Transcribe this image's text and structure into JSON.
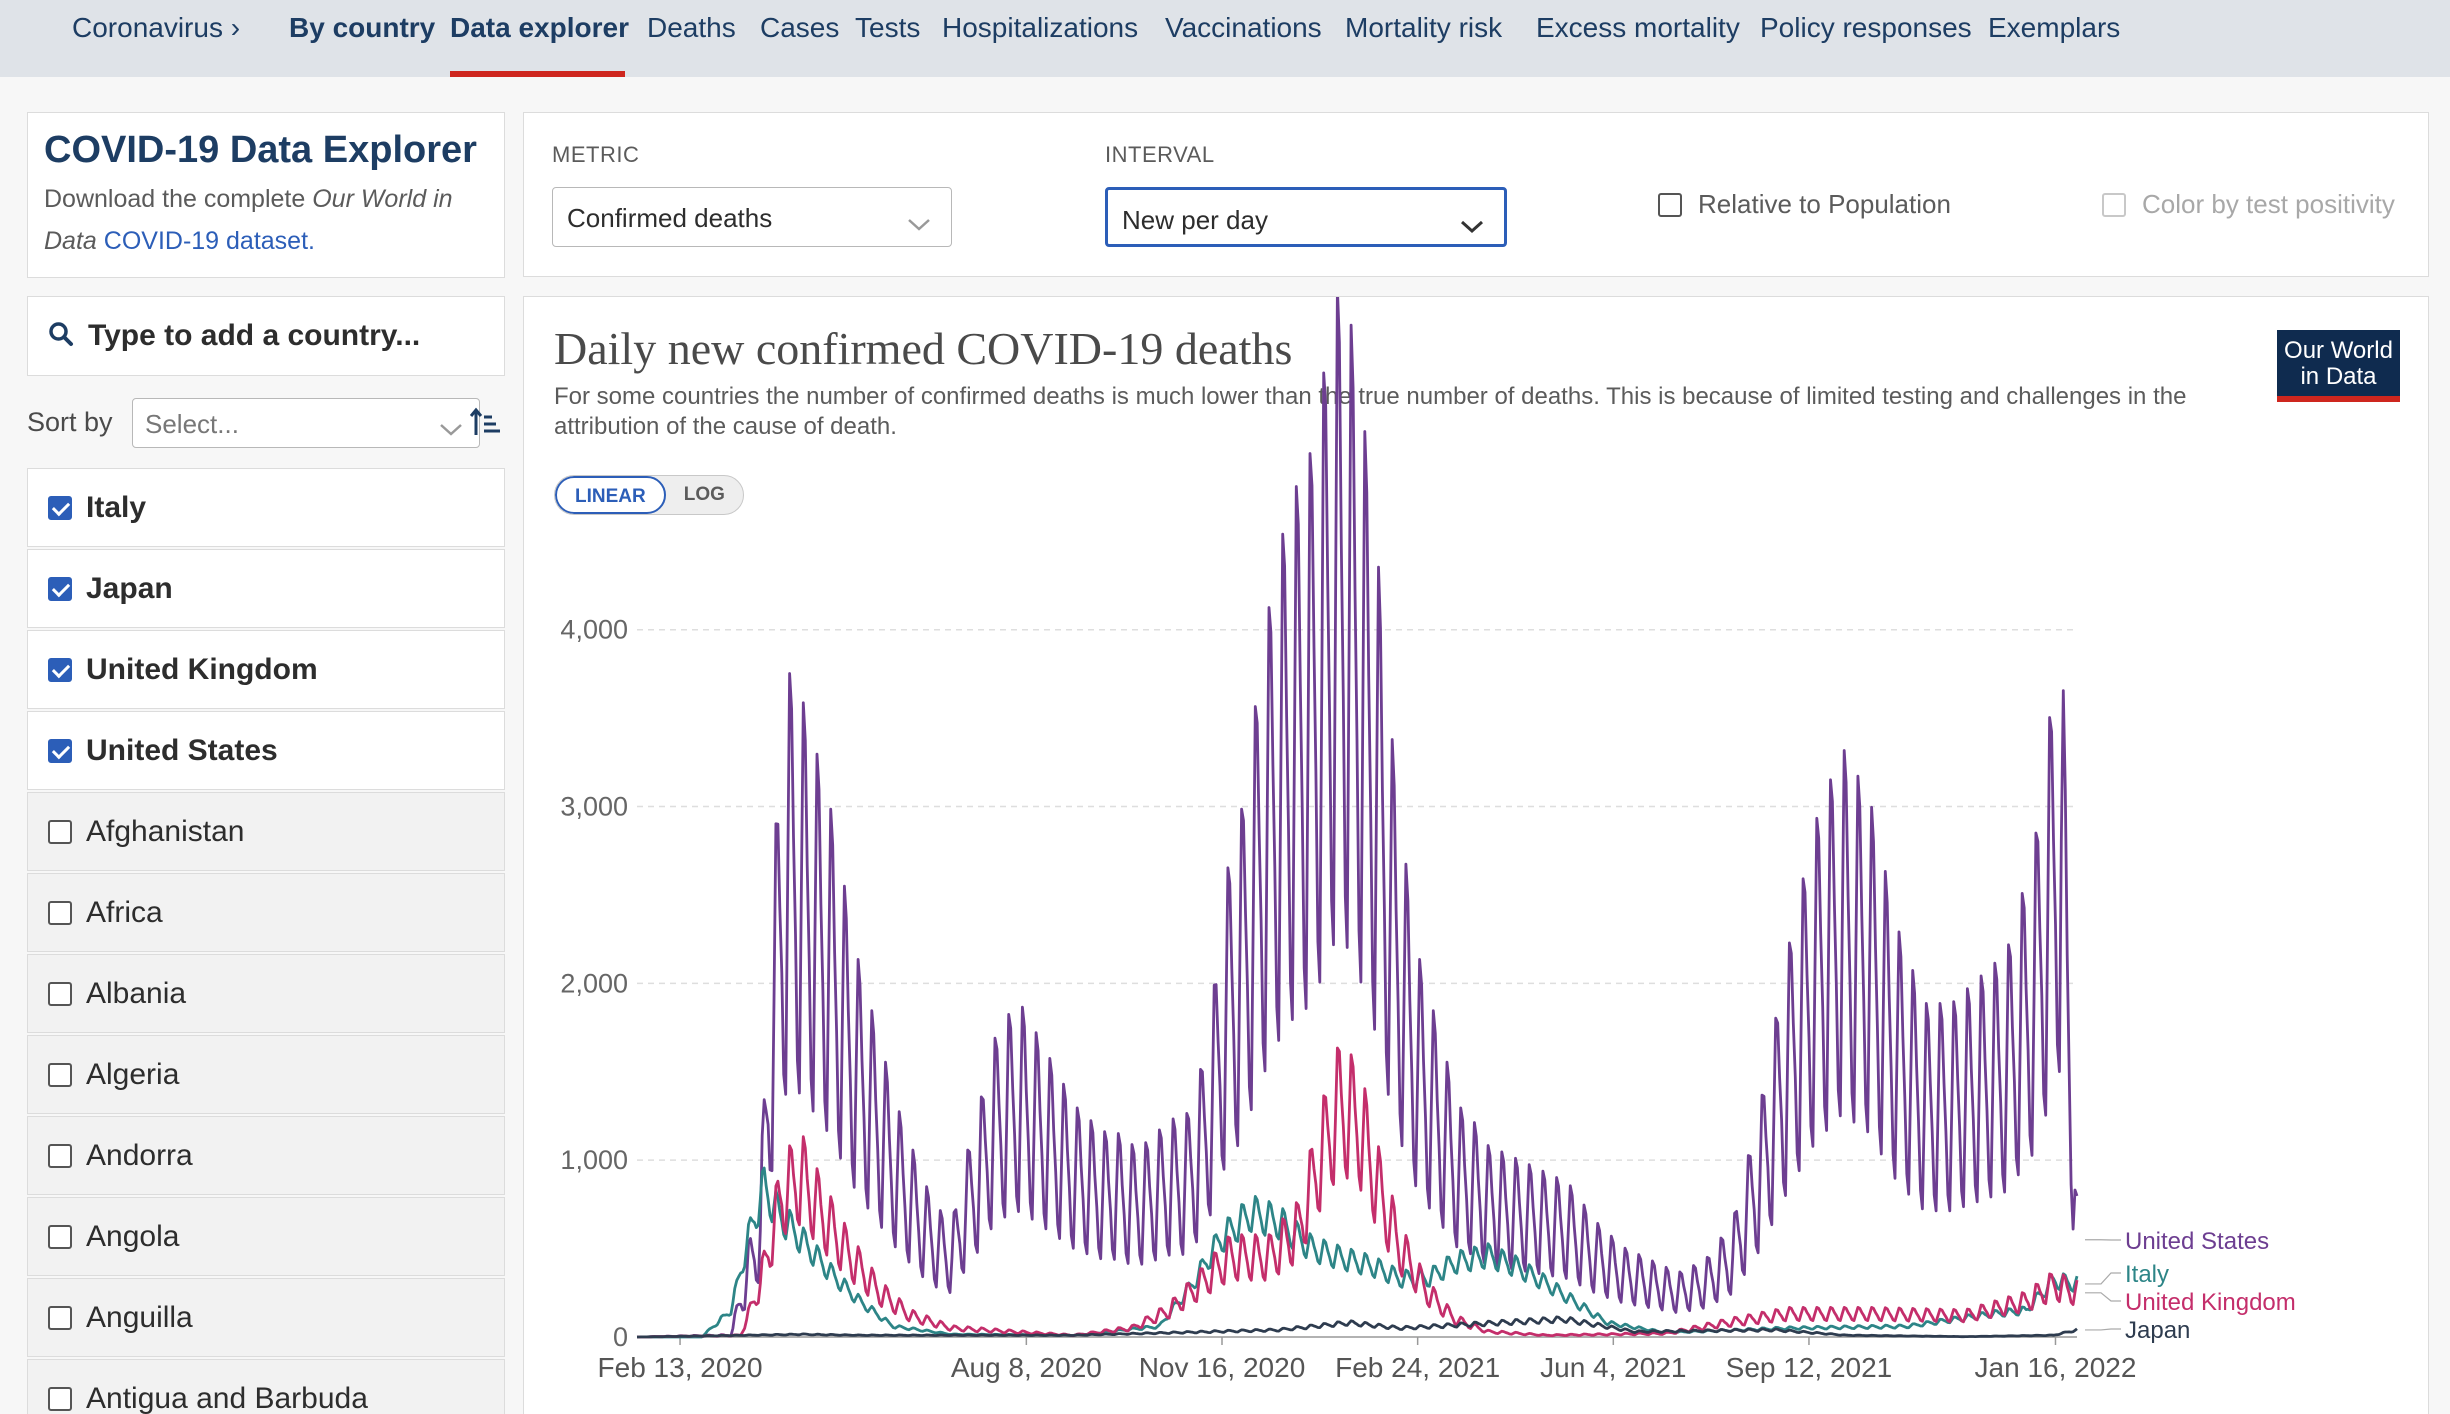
{
  "nav": {
    "items": [
      {
        "label": "Coronavirus ›",
        "bold": false
      },
      {
        "label": "By country",
        "bold": true
      },
      {
        "label": "Data explorer",
        "bold": true
      },
      {
        "label": "Deaths",
        "bold": false
      },
      {
        "label": "Cases",
        "bold": false
      },
      {
        "label": "Tests",
        "bold": false
      },
      {
        "label": "Hospitalizations",
        "bold": false
      },
      {
        "label": "Vaccinations",
        "bold": false
      },
      {
        "label": "Mortality risk",
        "bold": false
      },
      {
        "label": "Excess mortality",
        "bold": false
      },
      {
        "label": "Policy responses",
        "bold": false
      },
      {
        "label": "Exemplars",
        "bold": false
      }
    ],
    "active": "Data explorer"
  },
  "sidebar": {
    "title": "COVID-19 Data Explorer",
    "desc_prefix": "Download the complete ",
    "desc_italic": "Our World in Data",
    "desc_link": "COVID-19 dataset.",
    "search_placeholder": "Type to add a country...",
    "sort_label": "Sort by",
    "sort_value": "Select...",
    "countries": [
      {
        "name": "Italy",
        "checked": true
      },
      {
        "name": "Japan",
        "checked": true
      },
      {
        "name": "United Kingdom",
        "checked": true
      },
      {
        "name": "United States",
        "checked": true
      },
      {
        "name": "Afghanistan",
        "checked": false
      },
      {
        "name": "Africa",
        "checked": false
      },
      {
        "name": "Albania",
        "checked": false
      },
      {
        "name": "Algeria",
        "checked": false
      },
      {
        "name": "Andorra",
        "checked": false
      },
      {
        "name": "Angola",
        "checked": false
      },
      {
        "name": "Anguilla",
        "checked": false
      },
      {
        "name": "Antigua and Barbuda",
        "checked": false
      }
    ]
  },
  "controls": {
    "metric_label": "METRIC",
    "metric_value": "Confirmed deaths",
    "interval_label": "INTERVAL",
    "interval_value": "New per day",
    "relative_label": "Relative to Population",
    "color_label": "Color by test positivity"
  },
  "chart": {
    "title": "Daily new confirmed COVID-19 deaths",
    "subtitle": "For some countries the number of confirmed deaths is much lower than the true number of deaths. This is because of limited testing and challenges in the attribution of the cause of death.",
    "logo_line1": "Our World",
    "logo_line2": "in Data",
    "scale_linear": "LINEAR",
    "scale_log": "LOG"
  },
  "chart_data": {
    "type": "line",
    "title": "Daily new confirmed COVID-19 deaths",
    "y_ticks": [
      "0",
      "1,000",
      "2,000",
      "3,000",
      "4,000"
    ],
    "y_tick_values": [
      0,
      1000,
      2000,
      3000,
      4000
    ],
    "x_ticks": [
      "Feb 13, 2020",
      "Aug 8, 2020",
      "Nov 16, 2020",
      "Feb 24, 2021",
      "Jun 4, 2021",
      "Sep 12, 2021",
      "Jan 16, 2022"
    ],
    "x_tick_dates": [
      "2020-02-13",
      "2020-08-08",
      "2020-11-16",
      "2021-02-24",
      "2021-06-04",
      "2021-09-12",
      "2022-01-16"
    ],
    "x_range": [
      "2020-01-22",
      "2022-01-27"
    ],
    "ylim": [
      0,
      4400
    ],
    "grid": true,
    "series": [
      {
        "name": "United States",
        "color": "#6d3e91",
        "x": [
          "2020-01-22",
          "2020-03-10",
          "2020-03-25",
          "2020-04-01",
          "2020-04-08",
          "2020-04-15",
          "2020-04-22",
          "2020-04-29",
          "2020-05-06",
          "2020-05-13",
          "2020-05-20",
          "2020-05-27",
          "2020-06-03",
          "2020-06-10",
          "2020-06-17",
          "2020-06-24",
          "2020-07-01",
          "2020-07-08",
          "2020-07-15",
          "2020-07-22",
          "2020-07-29",
          "2020-08-05",
          "2020-08-12",
          "2020-08-19",
          "2020-08-26",
          "2020-09-02",
          "2020-09-09",
          "2020-09-16",
          "2020-09-23",
          "2020-09-30",
          "2020-10-07",
          "2020-10-14",
          "2020-10-21",
          "2020-10-28",
          "2020-11-04",
          "2020-11-11",
          "2020-11-18",
          "2020-11-25",
          "2020-12-02",
          "2020-12-09",
          "2020-12-16",
          "2020-12-23",
          "2020-12-30",
          "2021-01-06",
          "2021-01-13",
          "2021-01-20",
          "2021-01-27",
          "2021-02-03",
          "2021-02-10",
          "2021-02-17",
          "2021-02-24",
          "2021-03-03",
          "2021-03-10",
          "2021-03-17",
          "2021-03-24",
          "2021-03-31",
          "2021-04-14",
          "2021-04-28",
          "2021-05-12",
          "2021-05-26",
          "2021-06-09",
          "2021-06-23",
          "2021-07-07",
          "2021-07-21",
          "2021-08-04",
          "2021-08-18",
          "2021-09-01",
          "2021-09-15",
          "2021-09-29",
          "2021-10-13",
          "2021-10-27",
          "2021-11-10",
          "2021-11-24",
          "2021-12-08",
          "2021-12-22",
          "2022-01-05",
          "2022-01-19",
          "2022-01-27"
        ],
        "y": [
          0,
          10,
          600,
          1900,
          2600,
          2500,
          2300,
          2100,
          1800,
          1500,
          1300,
          1100,
          900,
          750,
          600,
          500,
          450,
          700,
          900,
          1150,
          1250,
          1300,
          1200,
          1100,
          1000,
          900,
          850,
          800,
          800,
          750,
          750,
          800,
          850,
          850,
          1000,
          1300,
          1800,
          2000,
          2400,
          2800,
          3100,
          3300,
          3400,
          3700,
          4100,
          4000,
          3600,
          3100,
          2400,
          1900,
          1500,
          1300,
          1100,
          900,
          850,
          750,
          700,
          650,
          600,
          450,
          350,
          300,
          250,
          300,
          450,
          900,
          1500,
          2000,
          2300,
          2100,
          1600,
          1300,
          1300,
          1400,
          1500,
          1900,
          2800,
          550
        ]
      },
      {
        "name": "Italy",
        "color": "#2d8587",
        "x": [
          "2020-01-22",
          "2020-02-24",
          "2020-03-10",
          "2020-03-20",
          "2020-03-27",
          "2020-04-03",
          "2020-04-15",
          "2020-05-01",
          "2020-05-15",
          "2020-06-01",
          "2020-07-01",
          "2020-09-01",
          "2020-10-15",
          "2020-11-01",
          "2020-11-15",
          "2020-12-01",
          "2020-12-15",
          "2021-01-01",
          "2021-01-15",
          "2021-02-01",
          "2021-02-15",
          "2021-03-01",
          "2021-03-15",
          "2021-04-01",
          "2021-04-15",
          "2021-05-01",
          "2021-05-15",
          "2021-06-01",
          "2021-07-01",
          "2021-09-01",
          "2021-11-01",
          "2021-12-15",
          "2022-01-01",
          "2022-01-15",
          "2022-01-27"
        ],
        "y": [
          0,
          0,
          150,
          600,
          850,
          700,
          550,
          350,
          200,
          60,
          15,
          10,
          60,
          300,
          550,
          700,
          650,
          500,
          450,
          400,
          330,
          330,
          420,
          460,
          400,
          300,
          200,
          80,
          25,
          50,
          60,
          130,
          150,
          320,
          300
        ]
      },
      {
        "name": "United Kingdom",
        "color": "#c42e6b",
        "x": [
          "2020-01-22",
          "2020-03-15",
          "2020-03-25",
          "2020-04-05",
          "2020-04-15",
          "2020-04-25",
          "2020-05-10",
          "2020-05-25",
          "2020-06-10",
          "2020-07-01",
          "2020-09-01",
          "2020-10-01",
          "2020-10-20",
          "2020-11-05",
          "2020-11-20",
          "2020-12-10",
          "2020-12-25",
          "2021-01-05",
          "2021-01-15",
          "2021-01-25",
          "2021-02-05",
          "2021-02-15",
          "2021-03-01",
          "2021-03-15",
          "2021-04-01",
          "2021-05-01",
          "2021-07-01",
          "2021-08-01",
          "2021-09-01",
          "2021-10-15",
          "2021-12-01",
          "2022-01-01",
          "2022-01-15",
          "2022-01-27"
        ],
        "y": [
          0,
          10,
          300,
          800,
          900,
          700,
          450,
          250,
          120,
          50,
          10,
          50,
          150,
          300,
          450,
          450,
          600,
          1000,
          1300,
          1200,
          800,
          500,
          250,
          100,
          30,
          10,
          20,
          80,
          130,
          130,
          120,
          200,
          290,
          250
        ]
      },
      {
        "name": "Japan",
        "color": "#2e3c4f",
        "x": [
          "2020-01-22",
          "2020-04-15",
          "2020-05-15",
          "2020-09-01",
          "2020-12-15",
          "2021-01-20",
          "2021-02-15",
          "2021-05-10",
          "2021-06-15",
          "2021-08-25",
          "2021-10-01",
          "2021-12-01",
          "2022-01-15",
          "2022-01-27"
        ],
        "y": [
          0,
          15,
          10,
          10,
          40,
          80,
          50,
          100,
          30,
          40,
          10,
          2,
          10,
          40
        ]
      }
    ],
    "end_labels": [
      "United States",
      "Italy",
      "United Kingdom",
      "Japan"
    ]
  }
}
